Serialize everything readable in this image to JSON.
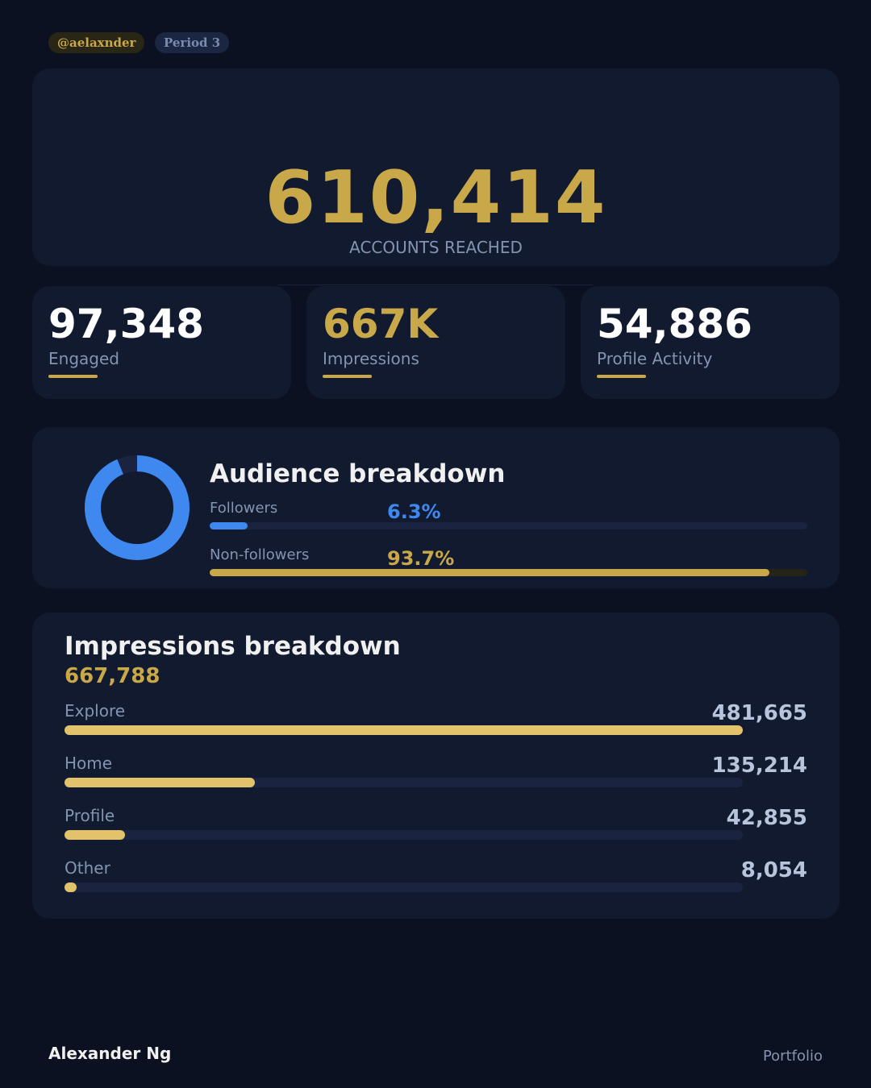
{
  "header": {
    "handle": "@aelaxnder",
    "period": "Period 3"
  },
  "hero": {
    "value": "610,414",
    "label": "ACCOUNTS REACHED"
  },
  "stats": [
    {
      "value": "97,348",
      "label": "Engaged",
      "color": "#ffffff"
    },
    {
      "value": "667K",
      "label": "Impressions",
      "color": "#c9a84a"
    },
    {
      "value": "54,886",
      "label": "Profile Activity",
      "color": "#ffffff"
    }
  ],
  "audience": {
    "title": "Audience breakdown",
    "items": [
      {
        "label": "Followers",
        "pct_text": "6.3%",
        "pct": 6.3,
        "color": "#3f88f0"
      },
      {
        "label": "Non-followers",
        "pct_text": "93.7%",
        "pct": 93.7,
        "color": "#c9a84a"
      }
    ]
  },
  "impressions": {
    "title": "Impressions breakdown",
    "total": "667,788",
    "rows": [
      {
        "label": "Explore",
        "value_text": "481,665",
        "value": 481665
      },
      {
        "label": "Home",
        "value_text": "135,214",
        "value": 135214
      },
      {
        "label": "Profile",
        "value_text": "42,855",
        "value": 42855
      },
      {
        "label": "Other",
        "value_text": "8,054",
        "value": 8054
      }
    ]
  },
  "footer": {
    "name": "Alexander Ng",
    "link": "Portfolio"
  },
  "colors": {
    "accent": "#c9a84a",
    "blue": "#3f88f0",
    "background": "#0b1120",
    "card": "#111a2e"
  }
}
